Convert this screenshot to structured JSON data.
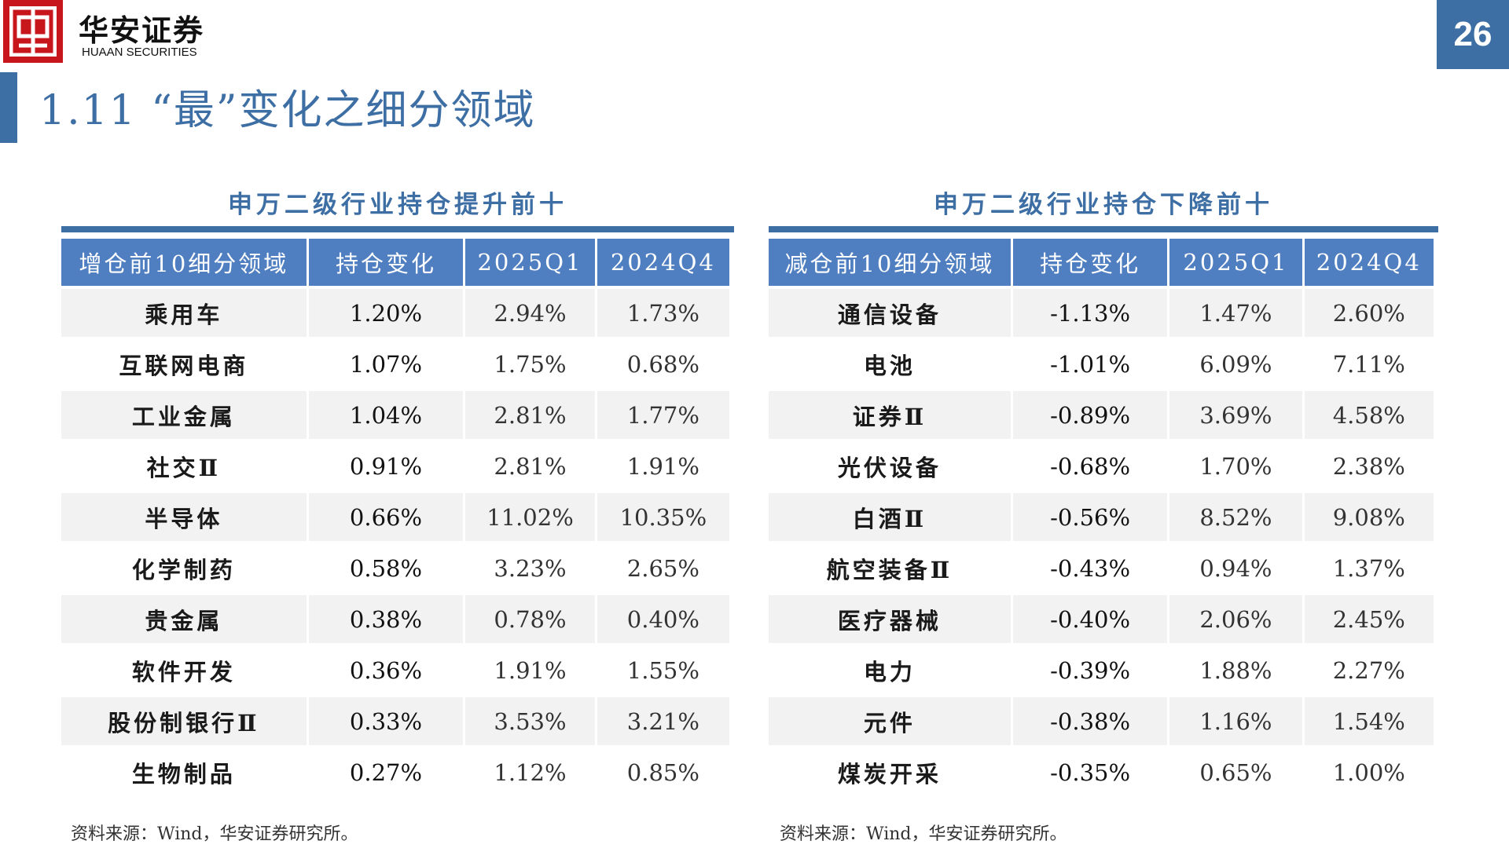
{
  "header": {
    "brand_cn": "华安证券",
    "brand_en": "HUAAN SECURITIES",
    "page_number": "26",
    "title": "1.11 “最”变化之细分领域"
  },
  "left_table": {
    "title": "申万二级行业持仓提升前十",
    "columns": [
      "增仓前10细分领域",
      "持仓变化",
      "2025Q1",
      "2024Q4"
    ],
    "rows": [
      [
        "乘用车",
        "1.20%",
        "2.94%",
        "1.73%"
      ],
      [
        "互联网电商",
        "1.07%",
        "1.75%",
        "0.68%"
      ],
      [
        "工业金属",
        "1.04%",
        "2.81%",
        "1.77%"
      ],
      [
        "社交Ⅱ",
        "0.91%",
        "2.81%",
        "1.91%"
      ],
      [
        "半导体",
        "0.66%",
        "11.02%",
        "10.35%"
      ],
      [
        "化学制药",
        "0.58%",
        "3.23%",
        "2.65%"
      ],
      [
        "贵金属",
        "0.38%",
        "0.78%",
        "0.40%"
      ],
      [
        "软件开发",
        "0.36%",
        "1.91%",
        "1.55%"
      ],
      [
        "股份制银行Ⅱ",
        "0.33%",
        "3.53%",
        "3.21%"
      ],
      [
        "生物制品",
        "0.27%",
        "1.12%",
        "0.85%"
      ]
    ],
    "source": "资料来源：Wind，华安证券研究所。"
  },
  "right_table": {
    "title": "申万二级行业持仓下降前十",
    "columns": [
      "减仓前10细分领域",
      "持仓变化",
      "2025Q1",
      "2024Q4"
    ],
    "rows": [
      [
        "通信设备",
        "-1.13%",
        "1.47%",
        "2.60%"
      ],
      [
        "电池",
        "-1.01%",
        "6.09%",
        "7.11%"
      ],
      [
        "证券Ⅱ",
        "-0.89%",
        "3.69%",
        "4.58%"
      ],
      [
        "光伏设备",
        "-0.68%",
        "1.70%",
        "2.38%"
      ],
      [
        "白酒Ⅱ",
        "-0.56%",
        "8.52%",
        "9.08%"
      ],
      [
        "航空装备Ⅱ",
        "-0.43%",
        "0.94%",
        "1.37%"
      ],
      [
        "医疗器械",
        "-0.40%",
        "2.06%",
        "2.45%"
      ],
      [
        "电力",
        "-0.39%",
        "1.88%",
        "2.27%"
      ],
      [
        "元件",
        "-0.38%",
        "1.16%",
        "1.54%"
      ],
      [
        "煤炭开采",
        "-0.35%",
        "0.65%",
        "1.00%"
      ]
    ],
    "source": "资料来源：Wind，华安证券研究所。"
  },
  "colors": {
    "accent": "#3d6ea4",
    "header_fill": "#4f7fc0",
    "logo_red": "#c8161d",
    "row_stripe": "#f2f2f2"
  }
}
